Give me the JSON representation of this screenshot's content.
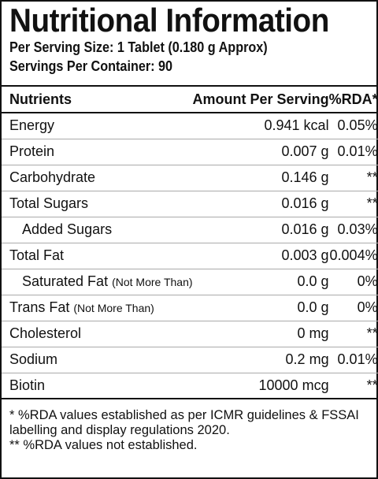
{
  "header": {
    "title": "Nutritional Information",
    "lines": [
      "Per Serving Size: 1 Tablet (0.180 g Approx)",
      "Servings Per Container: 90"
    ]
  },
  "table": {
    "columns": [
      "Nutrients",
      "Amount Per Serving",
      "%RDA*"
    ],
    "rows": [
      {
        "name": "Energy",
        "amount": "0.941 kcal",
        "rda": "0.05%"
      },
      {
        "name": "Protein",
        "amount": "0.007 g",
        "rda": "0.01%"
      },
      {
        "name": "Carbohydrate",
        "amount": "0.146 g",
        "rda": "**"
      },
      {
        "name": "Total Sugars",
        "amount": "0.016 g",
        "rda": "**"
      },
      {
        "name": "Added Sugars",
        "amount": "0.016 g",
        "rda": "0.03%"
      },
      {
        "name": "Total Fat",
        "amount": "0.003 g",
        "rda": "0.004%"
      },
      {
        "name": "Saturated Fat",
        "note": "(Not More Than)",
        "amount": "0.0 g",
        "rda": "0%"
      },
      {
        "name": "Trans Fat",
        "note": "(Not More Than)",
        "amount": "0.0 g",
        "rda": "0%"
      },
      {
        "name": "Cholesterol",
        "amount": "0 mg",
        "rda": "**"
      },
      {
        "name": "Sodium",
        "amount": "0.2 mg",
        "rda": "0.01%"
      },
      {
        "name": "Biotin",
        "amount": "10000 mcg",
        "rda": "**"
      }
    ]
  },
  "footnotes": [
    "* %RDA values established as per ICMR guidelines & FSSAI labelling and display regulations 2020.",
    "** %RDA values not established."
  ]
}
